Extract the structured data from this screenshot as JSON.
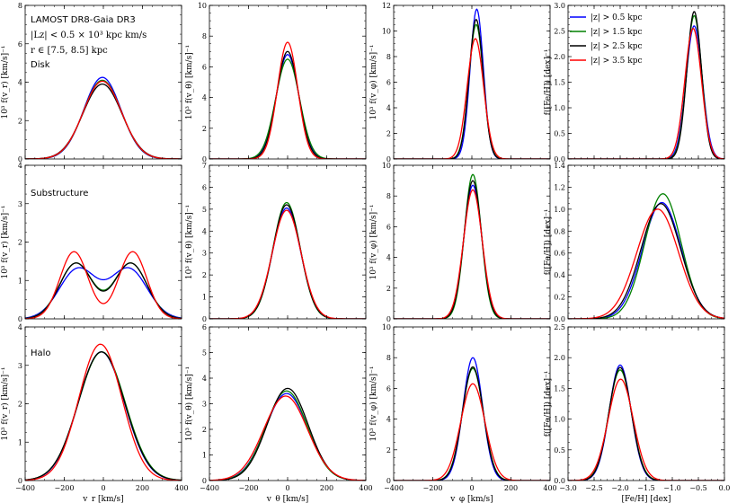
{
  "figure": {
    "annotation_lines": [
      "LAMOST DR8-Gaia DR3",
      "|Lz| < 0.5 × 10³ kpc km/s",
      "r ∈ [7.5, 8.5] kpc"
    ],
    "row_labels": [
      "Disk",
      "Substructure",
      "Halo"
    ],
    "legend": [
      {
        "label": "|z| > 0.5 kpc",
        "color": "#0000ff"
      },
      {
        "label": "|z| > 1.5 kpc",
        "color": "#008000"
      },
      {
        "label": "|z| > 2.5 kpc",
        "color": "#000000"
      },
      {
        "label": "|z| > 3.5 kpc",
        "color": "#ff0000"
      }
    ],
    "series_colors": [
      "#0000ff",
      "#008000",
      "#000000",
      "#ff0000"
    ]
  },
  "chart_data": [
    {
      "type": "line",
      "row": 0,
      "col": 0,
      "title": "",
      "xlabel": "v_r [km/s]",
      "ylabel": "10³ f(v_r) [km/s]⁻¹",
      "xlim": [
        -400,
        400
      ],
      "ylim": [
        0,
        8
      ],
      "xticks": [
        -400,
        -200,
        0,
        200,
        400
      ],
      "yticks": [
        0,
        2,
        4,
        6,
        8
      ],
      "series": [
        {
          "name": "|z| > 0.5 kpc",
          "components": [
            {
              "amp": 4.25,
              "mu": -5,
              "sigma": 95
            }
          ]
        },
        {
          "name": "|z| > 1.5 kpc",
          "components": [
            {
              "amp": 4.1,
              "mu": -5,
              "sigma": 97
            }
          ]
        },
        {
          "name": "|z| > 2.5 kpc",
          "components": [
            {
              "amp": 3.9,
              "mu": -5,
              "sigma": 100
            }
          ]
        },
        {
          "name": "|z| > 3.5 kpc",
          "components": [
            {
              "amp": 4.05,
              "mu": -5,
              "sigma": 98
            }
          ]
        }
      ]
    },
    {
      "type": "line",
      "row": 0,
      "col": 1,
      "xlabel": "v_θ [km/s]",
      "ylabel": "10³ f(v_θ) [km/s]⁻¹",
      "xlim": [
        -400,
        400
      ],
      "ylim": [
        0,
        10
      ],
      "xticks": [
        -400,
        -200,
        0,
        200,
        400
      ],
      "yticks": [
        0,
        2,
        4,
        6,
        8,
        10
      ],
      "series": [
        {
          "name": "|z| > 0.5 kpc",
          "components": [
            {
              "amp": 6.8,
              "mu": 0,
              "sigma": 58
            }
          ]
        },
        {
          "name": "|z| > 1.5 kpc",
          "components": [
            {
              "amp": 6.5,
              "mu": 0,
              "sigma": 61
            }
          ]
        },
        {
          "name": "|z| > 2.5 kpc",
          "components": [
            {
              "amp": 7.0,
              "mu": 0,
              "sigma": 56
            }
          ]
        },
        {
          "name": "|z| > 3.5 kpc",
          "components": [
            {
              "amp": 7.6,
              "mu": 0,
              "sigma": 52
            }
          ]
        }
      ]
    },
    {
      "type": "line",
      "row": 0,
      "col": 2,
      "xlabel": "v_φ [km/s]",
      "ylabel": "10³ f(v_φ) [km/s]⁻¹",
      "xlim": [
        -400,
        400
      ],
      "ylim": [
        0,
        12
      ],
      "xticks": [
        -400,
        -200,
        0,
        200,
        400
      ],
      "yticks": [
        0,
        2,
        4,
        6,
        8,
        10,
        12
      ],
      "series": [
        {
          "name": "|z| > 0.5 kpc",
          "components": [
            {
              "amp": 11.7,
              "mu": 25,
              "sigma": 34
            }
          ]
        },
        {
          "name": "|z| > 1.5 kpc",
          "components": [
            {
              "amp": 10.5,
              "mu": 22,
              "sigma": 37
            }
          ]
        },
        {
          "name": "|z| > 2.5 kpc",
          "components": [
            {
              "amp": 10.9,
              "mu": 22,
              "sigma": 36
            }
          ]
        },
        {
          "name": "|z| > 3.5 kpc",
          "components": [
            {
              "amp": 9.4,
              "mu": 18,
              "sigma": 42
            }
          ]
        }
      ]
    },
    {
      "type": "line",
      "row": 0,
      "col": 3,
      "xlabel": "[Fe/H] [dex]",
      "ylabel": "f([Fe/H]) [dex]⁻¹",
      "xlim": [
        -3.0,
        0.0
      ],
      "ylim": [
        0,
        3.0
      ],
      "xticks": [
        -3.0,
        -2.5,
        -2.0,
        -1.5,
        -1.0,
        -0.5,
        0.0
      ],
      "yticks": [
        0,
        0.5,
        1.0,
        1.5,
        2.0,
        2.5,
        3.0
      ],
      "series": [
        {
          "name": "|z| > 0.5 kpc",
          "components": [
            {
              "amp": 2.6,
              "mu": -0.58,
              "sigma": 0.155
            }
          ]
        },
        {
          "name": "|z| > 1.5 kpc",
          "components": [
            {
              "amp": 2.8,
              "mu": -0.58,
              "sigma": 0.145
            }
          ]
        },
        {
          "name": "|z| > 2.5 kpc",
          "components": [
            {
              "amp": 2.88,
              "mu": -0.58,
              "sigma": 0.14
            }
          ]
        },
        {
          "name": "|z| > 3.5 kpc",
          "components": [
            {
              "amp": 2.55,
              "mu": -0.6,
              "sigma": 0.16
            }
          ]
        }
      ]
    },
    {
      "type": "line",
      "row": 1,
      "col": 0,
      "xlabel": "v_r [km/s]",
      "ylabel": "10³ f(v_r) [km/s]⁻¹",
      "xlim": [
        -400,
        400
      ],
      "ylim": [
        0,
        4
      ],
      "xticks": [
        -400,
        -200,
        0,
        200,
        400
      ],
      "yticks": [
        0,
        1,
        2,
        3,
        4
      ],
      "series": [
        {
          "name": "|z| > 0.5 kpc",
          "components": [
            {
              "amp": 1.3,
              "mu": -130,
              "sigma": 95
            },
            {
              "amp": 1.3,
              "mu": 130,
              "sigma": 95
            }
          ]
        },
        {
          "name": "|z| > 1.5 kpc",
          "components": [
            {
              "amp": 1.45,
              "mu": -140,
              "sigma": 85
            },
            {
              "amp": 1.45,
              "mu": 140,
              "sigma": 85
            }
          ]
        },
        {
          "name": "|z| > 2.5 kpc",
          "components": [
            {
              "amp": 1.45,
              "mu": -140,
              "sigma": 84
            },
            {
              "amp": 1.45,
              "mu": 140,
              "sigma": 84
            }
          ]
        },
        {
          "name": "|z| > 3.5 kpc",
          "components": [
            {
              "amp": 1.75,
              "mu": -150,
              "sigma": 72
            },
            {
              "amp": 1.75,
              "mu": 150,
              "sigma": 72
            }
          ]
        }
      ]
    },
    {
      "type": "line",
      "row": 1,
      "col": 1,
      "xlabel": "v_θ [km/s]",
      "ylabel": "10³ f(v_θ) [km/s]⁻¹",
      "xlim": [
        -400,
        400
      ],
      "ylim": [
        0,
        7
      ],
      "xticks": [
        -400,
        -200,
        0,
        200,
        400
      ],
      "yticks": [
        0,
        1,
        2,
        3,
        4,
        5,
        6,
        7
      ],
      "series": [
        {
          "name": "|z| > 0.5 kpc",
          "components": [
            {
              "amp": 5.05,
              "mu": -5,
              "sigma": 72
            }
          ]
        },
        {
          "name": "|z| > 1.5 kpc",
          "components": [
            {
              "amp": 5.3,
              "mu": -5,
              "sigma": 70
            }
          ]
        },
        {
          "name": "|z| > 2.5 kpc",
          "components": [
            {
              "amp": 5.2,
              "mu": -5,
              "sigma": 71
            }
          ]
        },
        {
          "name": "|z| > 3.5 kpc",
          "components": [
            {
              "amp": 4.95,
              "mu": -5,
              "sigma": 74
            }
          ]
        }
      ]
    },
    {
      "type": "line",
      "row": 1,
      "col": 2,
      "xlabel": "v_φ [km/s]",
      "ylabel": "10³ f(v_φ) [km/s]⁻¹",
      "xlim": [
        -400,
        400
      ],
      "ylim": [
        0,
        10
      ],
      "xticks": [
        -400,
        -200,
        0,
        200,
        400
      ],
      "yticks": [
        0,
        2,
        4,
        6,
        8,
        10
      ],
      "series": [
        {
          "name": "|z| > 0.5 kpc",
          "components": [
            {
              "amp": 8.7,
              "mu": 5,
              "sigma": 46
            }
          ]
        },
        {
          "name": "|z| > 1.5 kpc",
          "components": [
            {
              "amp": 9.4,
              "mu": 5,
              "sigma": 43
            }
          ]
        },
        {
          "name": "|z| > 2.5 kpc",
          "components": [
            {
              "amp": 9.0,
              "mu": 5,
              "sigma": 45
            }
          ]
        },
        {
          "name": "|z| > 3.5 kpc",
          "components": [
            {
              "amp": 8.4,
              "mu": 5,
              "sigma": 48
            }
          ]
        }
      ]
    },
    {
      "type": "line",
      "row": 1,
      "col": 3,
      "xlabel": "[Fe/H] [dex]",
      "ylabel": "f([Fe/H]) [dex]⁻¹",
      "xlim": [
        -3.0,
        0.0
      ],
      "ylim": [
        0,
        1.4
      ],
      "xticks": [
        -3.0,
        -2.5,
        -2.0,
        -1.5,
        -1.0,
        -0.5,
        0.0
      ],
      "yticks": [
        0,
        0.2,
        0.4,
        0.6,
        0.8,
        1.0,
        1.2,
        1.4
      ],
      "series": [
        {
          "name": "|z| > 0.5 kpc",
          "components": [
            {
              "amp": 1.06,
              "mu": -1.2,
              "sigma": 0.37
            }
          ]
        },
        {
          "name": "|z| > 1.5 kpc",
          "components": [
            {
              "amp": 1.14,
              "mu": -1.18,
              "sigma": 0.35
            }
          ]
        },
        {
          "name": "|z| > 2.5 kpc",
          "components": [
            {
              "amp": 1.05,
              "mu": -1.22,
              "sigma": 0.38
            }
          ]
        },
        {
          "name": "|z| > 3.5 kpc",
          "components": [
            {
              "amp": 1.0,
              "mu": -1.28,
              "sigma": 0.4
            }
          ]
        }
      ]
    },
    {
      "type": "line",
      "row": 2,
      "col": 0,
      "xlabel": "v_r [km/s]",
      "ylabel": "10³ f(v_r) [km/s]⁻¹",
      "xlim": [
        -400,
        400
      ],
      "ylim": [
        0,
        4
      ],
      "xticks": [
        -400,
        -200,
        0,
        200,
        400
      ],
      "yticks": [
        0,
        1,
        2,
        3,
        4
      ],
      "series": [
        {
          "name": "|z| > 0.5 kpc",
          "components": [
            {
              "amp": 3.35,
              "mu": -10,
              "sigma": 118
            }
          ]
        },
        {
          "name": "|z| > 1.5 kpc",
          "components": [
            {
              "amp": 3.35,
              "mu": -8,
              "sigma": 120
            }
          ]
        },
        {
          "name": "|z| > 2.5 kpc",
          "components": [
            {
              "amp": 3.35,
              "mu": -10,
              "sigma": 119
            }
          ]
        },
        {
          "name": "|z| > 3.5 kpc",
          "components": [
            {
              "amp": 3.55,
              "mu": -15,
              "sigma": 110
            }
          ]
        }
      ]
    },
    {
      "type": "line",
      "row": 2,
      "col": 1,
      "xlabel": "v_θ [km/s]",
      "ylabel": "10³ f(v_θ) [km/s]⁻¹",
      "xlim": [
        -400,
        400
      ],
      "ylim": [
        0,
        6
      ],
      "xticks": [
        -400,
        -200,
        0,
        200,
        400
      ],
      "yticks": [
        0,
        1,
        2,
        3,
        4,
        5,
        6
      ],
      "series": [
        {
          "name": "|z| > 0.5 kpc",
          "components": [
            {
              "amp": 3.4,
              "mu": -5,
              "sigma": 108
            }
          ]
        },
        {
          "name": "|z| > 1.5 kpc",
          "components": [
            {
              "amp": 3.5,
              "mu": -5,
              "sigma": 106
            }
          ]
        },
        {
          "name": "|z| > 2.5 kpc",
          "components": [
            {
              "amp": 3.6,
              "mu": 0,
              "sigma": 105
            }
          ]
        },
        {
          "name": "|z| > 3.5 kpc",
          "components": [
            {
              "amp": 3.3,
              "mu": -10,
              "sigma": 112
            }
          ]
        }
      ]
    },
    {
      "type": "line",
      "row": 2,
      "col": 2,
      "xlabel": "v_φ [km/s]",
      "ylabel": "10³ f(v_φ) [km/s]⁻¹",
      "xlim": [
        -400,
        400
      ],
      "ylim": [
        0,
        10
      ],
      "xticks": [
        -400,
        -200,
        0,
        200,
        400
      ],
      "yticks": [
        0,
        2,
        4,
        6,
        8,
        10
      ],
      "series": [
        {
          "name": "|z| > 0.5 kpc",
          "components": [
            {
              "amp": 8.0,
              "mu": 5,
              "sigma": 50
            }
          ]
        },
        {
          "name": "|z| > 1.5 kpc",
          "components": [
            {
              "amp": 7.3,
              "mu": 5,
              "sigma": 54
            }
          ]
        },
        {
          "name": "|z| > 2.5 kpc",
          "components": [
            {
              "amp": 7.4,
              "mu": 5,
              "sigma": 53
            }
          ]
        },
        {
          "name": "|z| > 3.5 kpc",
          "components": [
            {
              "amp": 6.3,
              "mu": 5,
              "sigma": 62
            }
          ]
        }
      ]
    },
    {
      "type": "line",
      "row": 2,
      "col": 3,
      "xlabel": "[Fe/H] [dex]",
      "ylabel": "f([Fe/H]) [dex]⁻¹",
      "xlim": [
        -3.0,
        0.0
      ],
      "ylim": [
        0,
        2.5
      ],
      "xticks": [
        -3.0,
        -2.5,
        -2.0,
        -1.5,
        -1.0,
        -0.5,
        0.0
      ],
      "yticks": [
        0,
        0.5,
        1.0,
        1.5,
        2.0,
        2.5
      ],
      "series": [
        {
          "name": "|z| > 0.5 kpc",
          "components": [
            {
              "amp": 1.88,
              "mu": -2.0,
              "sigma": 0.21
            }
          ]
        },
        {
          "name": "|z| > 1.5 kpc",
          "components": [
            {
              "amp": 1.8,
              "mu": -2.0,
              "sigma": 0.22
            }
          ]
        },
        {
          "name": "|z| > 2.5 kpc",
          "components": [
            {
              "amp": 1.84,
              "mu": -2.0,
              "sigma": 0.215
            }
          ]
        },
        {
          "name": "|z| > 3.5 kpc",
          "components": [
            {
              "amp": 1.65,
              "mu": -1.99,
              "sigma": 0.24
            }
          ]
        }
      ]
    }
  ]
}
